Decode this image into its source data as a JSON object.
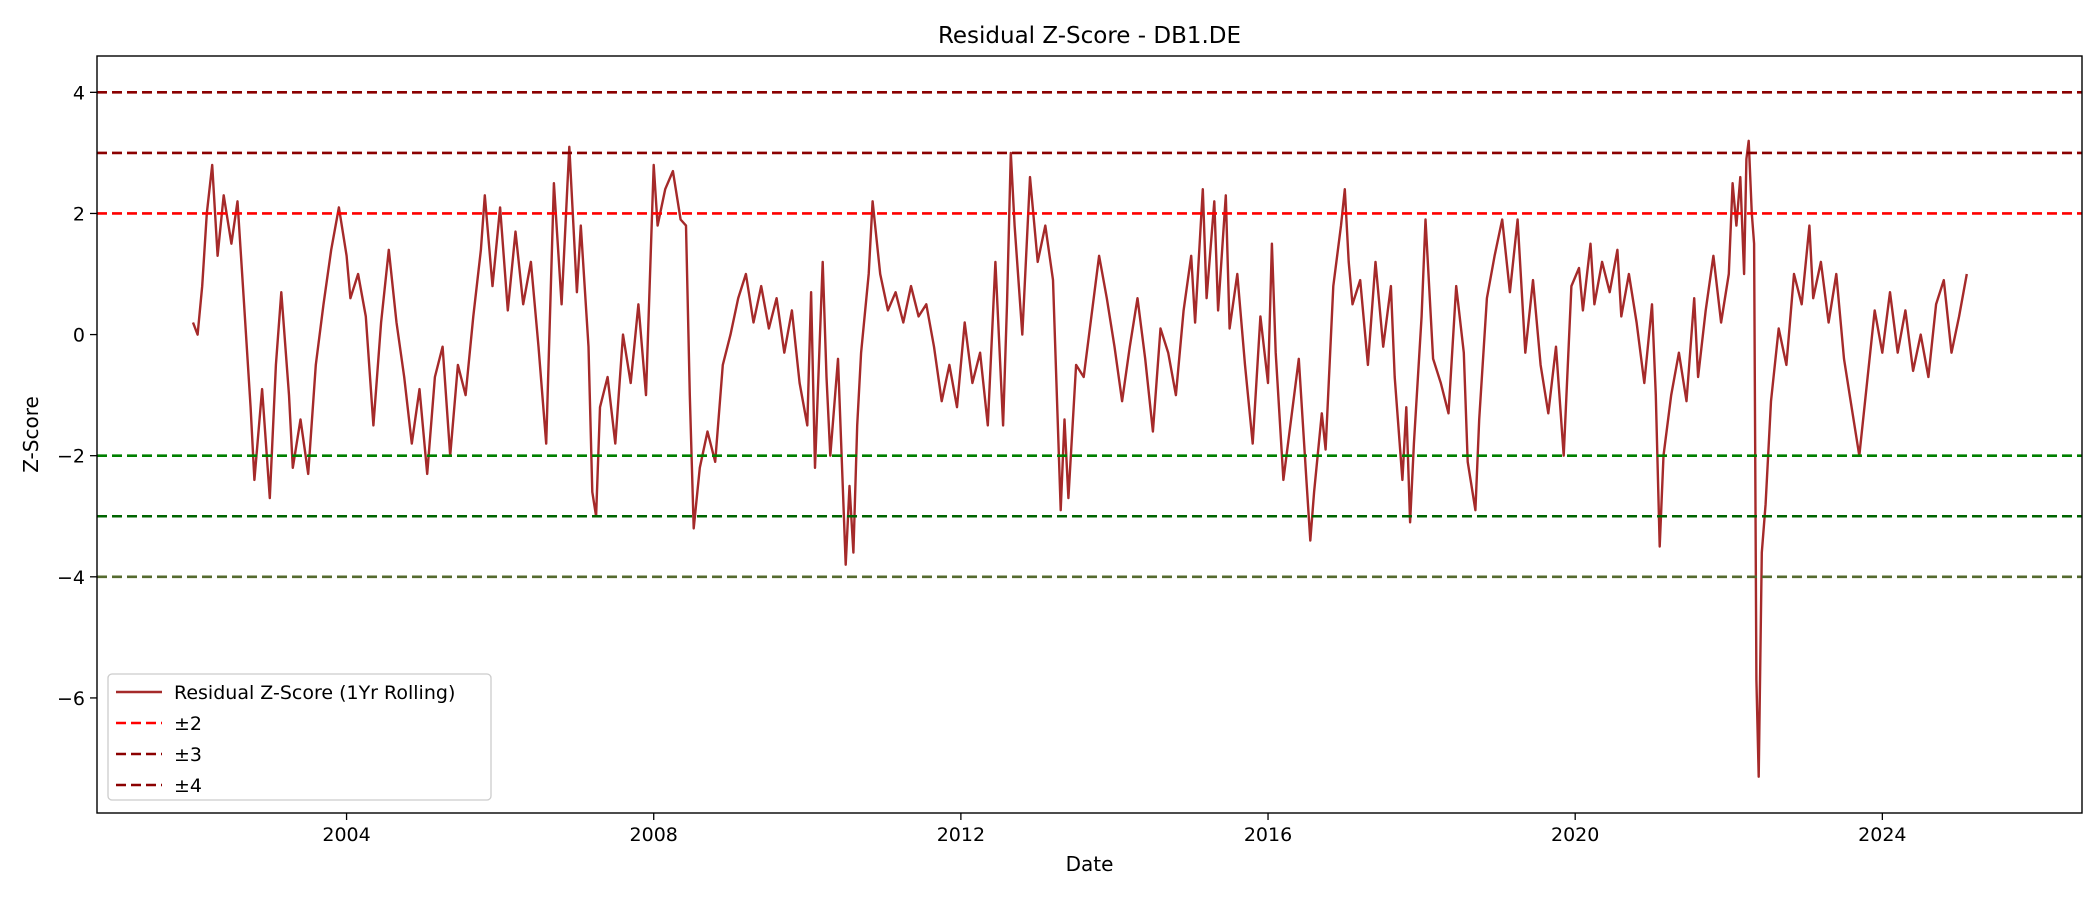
{
  "chart_data": {
    "type": "line",
    "title": "Residual Z-Score - DB1.DE",
    "xlabel": "Date",
    "ylabel": "Z-Score",
    "xlim": [
      2000.75,
      2026.6
    ],
    "ylim": [
      -7.9,
      4.6
    ],
    "xticks": [
      2004,
      2008,
      2012,
      2016,
      2020,
      2024
    ],
    "yticks": [
      4,
      2,
      0,
      -2,
      -4,
      -6
    ],
    "ytick_labels": [
      "4",
      "2",
      "0",
      "−2",
      "−4",
      "−6"
    ],
    "grid": false,
    "legend_position": "lower-left",
    "series": [
      {
        "name": "Residual Z-Score (1Yr Rolling)",
        "color": "#a52a2a",
        "points": [
          [
            2002.0,
            0.2
          ],
          [
            2002.06,
            0.0
          ],
          [
            2002.12,
            0.8
          ],
          [
            2002.18,
            2.0
          ],
          [
            2002.25,
            2.8
          ],
          [
            2002.32,
            1.3
          ],
          [
            2002.4,
            2.3
          ],
          [
            2002.5,
            1.5
          ],
          [
            2002.58,
            2.2
          ],
          [
            2002.66,
            0.6
          ],
          [
            2002.75,
            -1.2
          ],
          [
            2002.8,
            -2.4
          ],
          [
            2002.9,
            -0.9
          ],
          [
            2003.0,
            -2.7
          ],
          [
            2003.08,
            -0.5
          ],
          [
            2003.15,
            0.7
          ],
          [
            2003.25,
            -1.0
          ],
          [
            2003.3,
            -2.2
          ],
          [
            2003.4,
            -1.4
          ],
          [
            2003.5,
            -2.3
          ],
          [
            2003.6,
            -0.5
          ],
          [
            2003.7,
            0.5
          ],
          [
            2003.8,
            1.4
          ],
          [
            2003.9,
            2.1
          ],
          [
            2004.0,
            1.3
          ],
          [
            2004.05,
            0.6
          ],
          [
            2004.15,
            1.0
          ],
          [
            2004.25,
            0.3
          ],
          [
            2004.35,
            -1.5
          ],
          [
            2004.45,
            0.2
          ],
          [
            2004.55,
            1.4
          ],
          [
            2004.65,
            0.2
          ],
          [
            2004.75,
            -0.7
          ],
          [
            2004.85,
            -1.8
          ],
          [
            2004.95,
            -0.9
          ],
          [
            2005.05,
            -2.3
          ],
          [
            2005.15,
            -0.7
          ],
          [
            2005.25,
            -0.2
          ],
          [
            2005.35,
            -2.0
          ],
          [
            2005.45,
            -0.5
          ],
          [
            2005.55,
            -1.0
          ],
          [
            2005.65,
            0.3
          ],
          [
            2005.75,
            1.4
          ],
          [
            2005.8,
            2.3
          ],
          [
            2005.9,
            0.8
          ],
          [
            2006.0,
            2.1
          ],
          [
            2006.1,
            0.4
          ],
          [
            2006.2,
            1.7
          ],
          [
            2006.3,
            0.5
          ],
          [
            2006.4,
            1.2
          ],
          [
            2006.5,
            -0.2
          ],
          [
            2006.6,
            -1.8
          ],
          [
            2006.7,
            2.5
          ],
          [
            2006.8,
            0.5
          ],
          [
            2006.9,
            3.1
          ],
          [
            2007.0,
            0.7
          ],
          [
            2007.05,
            1.8
          ],
          [
            2007.15,
            -0.2
          ],
          [
            2007.2,
            -2.6
          ],
          [
            2007.25,
            -3.0
          ],
          [
            2007.3,
            -1.2
          ],
          [
            2007.4,
            -0.7
          ],
          [
            2007.5,
            -1.8
          ],
          [
            2007.6,
            0.0
          ],
          [
            2007.7,
            -0.8
          ],
          [
            2007.8,
            0.5
          ],
          [
            2007.9,
            -1.0
          ],
          [
            2008.0,
            2.8
          ],
          [
            2008.05,
            1.8
          ],
          [
            2008.15,
            2.4
          ],
          [
            2008.25,
            2.7
          ],
          [
            2008.35,
            1.9
          ],
          [
            2008.42,
            1.8
          ],
          [
            2008.47,
            -1.0
          ],
          [
            2008.52,
            -3.2
          ],
          [
            2008.6,
            -2.2
          ],
          [
            2008.7,
            -1.6
          ],
          [
            2008.8,
            -2.1
          ],
          [
            2008.9,
            -0.5
          ],
          [
            2009.0,
            0.0
          ],
          [
            2009.1,
            0.6
          ],
          [
            2009.2,
            1.0
          ],
          [
            2009.3,
            0.2
          ],
          [
            2009.4,
            0.8
          ],
          [
            2009.5,
            0.1
          ],
          [
            2009.6,
            0.6
          ],
          [
            2009.7,
            -0.3
          ],
          [
            2009.8,
            0.4
          ],
          [
            2009.9,
            -0.8
          ],
          [
            2010.0,
            -1.5
          ],
          [
            2010.05,
            0.7
          ],
          [
            2010.1,
            -2.2
          ],
          [
            2010.2,
            1.2
          ],
          [
            2010.25,
            -0.7
          ],
          [
            2010.3,
            -2.0
          ],
          [
            2010.4,
            -0.4
          ],
          [
            2010.5,
            -3.8
          ],
          [
            2010.55,
            -2.5
          ],
          [
            2010.6,
            -3.6
          ],
          [
            2010.65,
            -1.5
          ],
          [
            2010.7,
            -0.3
          ],
          [
            2010.8,
            1.0
          ],
          [
            2010.85,
            2.2
          ],
          [
            2010.95,
            1.0
          ],
          [
            2011.05,
            0.4
          ],
          [
            2011.15,
            0.7
          ],
          [
            2011.25,
            0.2
          ],
          [
            2011.35,
            0.8
          ],
          [
            2011.45,
            0.3
          ],
          [
            2011.55,
            0.5
          ],
          [
            2011.65,
            -0.2
          ],
          [
            2011.75,
            -1.1
          ],
          [
            2011.85,
            -0.5
          ],
          [
            2011.95,
            -1.2
          ],
          [
            2012.05,
            0.2
          ],
          [
            2012.15,
            -0.8
          ],
          [
            2012.25,
            -0.3
          ],
          [
            2012.35,
            -1.5
          ],
          [
            2012.45,
            1.2
          ],
          [
            2012.55,
            -1.5
          ],
          [
            2012.6,
            0.5
          ],
          [
            2012.65,
            3.0
          ],
          [
            2012.7,
            1.8
          ],
          [
            2012.8,
            0.0
          ],
          [
            2012.9,
            2.6
          ],
          [
            2013.0,
            1.2
          ],
          [
            2013.1,
            1.8
          ],
          [
            2013.2,
            0.9
          ],
          [
            2013.3,
            -2.9
          ],
          [
            2013.35,
            -1.4
          ],
          [
            2013.4,
            -2.7
          ],
          [
            2013.5,
            -0.5
          ],
          [
            2013.6,
            -0.7
          ],
          [
            2013.7,
            0.3
          ],
          [
            2013.8,
            1.3
          ],
          [
            2013.9,
            0.6
          ],
          [
            2014.0,
            -0.2
          ],
          [
            2014.1,
            -1.1
          ],
          [
            2014.2,
            -0.2
          ],
          [
            2014.3,
            0.6
          ],
          [
            2014.4,
            -0.4
          ],
          [
            2014.5,
            -1.6
          ],
          [
            2014.6,
            0.1
          ],
          [
            2014.7,
            -0.3
          ],
          [
            2014.8,
            -1.0
          ],
          [
            2014.9,
            0.4
          ],
          [
            2015.0,
            1.3
          ],
          [
            2015.05,
            0.2
          ],
          [
            2015.15,
            2.4
          ],
          [
            2015.2,
            0.6
          ],
          [
            2015.3,
            2.2
          ],
          [
            2015.35,
            0.4
          ],
          [
            2015.45,
            2.3
          ],
          [
            2015.5,
            0.1
          ],
          [
            2015.6,
            1.0
          ],
          [
            2015.7,
            -0.5
          ],
          [
            2015.8,
            -1.8
          ],
          [
            2015.9,
            0.3
          ],
          [
            2016.0,
            -0.8
          ],
          [
            2016.05,
            1.5
          ],
          [
            2016.1,
            -0.3
          ],
          [
            2016.2,
            -2.4
          ],
          [
            2016.3,
            -1.4
          ],
          [
            2016.4,
            -0.4
          ],
          [
            2016.5,
            -2.4
          ],
          [
            2016.55,
            -3.4
          ],
          [
            2016.6,
            -2.6
          ],
          [
            2016.7,
            -1.3
          ],
          [
            2016.75,
            -1.9
          ],
          [
            2016.85,
            0.8
          ],
          [
            2016.95,
            1.8
          ],
          [
            2017.0,
            2.4
          ],
          [
            2017.05,
            1.2
          ],
          [
            2017.1,
            0.5
          ],
          [
            2017.2,
            0.9
          ],
          [
            2017.3,
            -0.5
          ],
          [
            2017.4,
            1.2
          ],
          [
            2017.5,
            -0.2
          ],
          [
            2017.6,
            0.8
          ],
          [
            2017.65,
            -0.7
          ],
          [
            2017.75,
            -2.4
          ],
          [
            2017.8,
            -1.2
          ],
          [
            2017.85,
            -3.1
          ],
          [
            2017.9,
            -1.8
          ],
          [
            2018.0,
            0.3
          ],
          [
            2018.05,
            1.9
          ],
          [
            2018.15,
            -0.4
          ],
          [
            2018.25,
            -0.8
          ],
          [
            2018.35,
            -1.3
          ],
          [
            2018.45,
            0.8
          ],
          [
            2018.55,
            -0.3
          ],
          [
            2018.6,
            -2.1
          ],
          [
            2018.7,
            -2.9
          ],
          [
            2018.75,
            -1.4
          ],
          [
            2018.85,
            0.6
          ],
          [
            2018.95,
            1.3
          ],
          [
            2019.05,
            1.9
          ],
          [
            2019.15,
            0.7
          ],
          [
            2019.25,
            1.9
          ],
          [
            2019.35,
            -0.3
          ],
          [
            2019.45,
            0.9
          ],
          [
            2019.55,
            -0.5
          ],
          [
            2019.65,
            -1.3
          ],
          [
            2019.75,
            -0.2
          ],
          [
            2019.85,
            -2.0
          ],
          [
            2019.95,
            0.8
          ],
          [
            2020.05,
            1.1
          ],
          [
            2020.1,
            0.4
          ],
          [
            2020.2,
            1.5
          ],
          [
            2020.25,
            0.5
          ],
          [
            2020.35,
            1.2
          ],
          [
            2020.45,
            0.7
          ],
          [
            2020.55,
            1.4
          ],
          [
            2020.6,
            0.3
          ],
          [
            2020.7,
            1.0
          ],
          [
            2020.8,
            0.2
          ],
          [
            2020.9,
            -0.8
          ],
          [
            2021.0,
            0.5
          ],
          [
            2021.05,
            -1.0
          ],
          [
            2021.1,
            -3.5
          ],
          [
            2021.15,
            -2.0
          ],
          [
            2021.25,
            -1.0
          ],
          [
            2021.35,
            -0.3
          ],
          [
            2021.45,
            -1.1
          ],
          [
            2021.55,
            0.6
          ],
          [
            2021.6,
            -0.7
          ],
          [
            2021.7,
            0.4
          ],
          [
            2021.8,
            1.3
          ],
          [
            2021.9,
            0.2
          ],
          [
            2022.0,
            1.0
          ],
          [
            2022.05,
            2.5
          ],
          [
            2022.1,
            1.8
          ],
          [
            2022.15,
            2.6
          ],
          [
            2022.2,
            1.0
          ],
          [
            2022.23,
            2.9
          ],
          [
            2022.26,
            3.2
          ],
          [
            2022.3,
            2.0
          ],
          [
            2022.33,
            1.5
          ],
          [
            2022.36,
            -5.7
          ],
          [
            2022.39,
            -7.3
          ],
          [
            2022.43,
            -3.6
          ],
          [
            2022.48,
            -2.8
          ],
          [
            2022.55,
            -1.1
          ],
          [
            2022.65,
            0.1
          ],
          [
            2022.75,
            -0.5
          ],
          [
            2022.85,
            1.0
          ],
          [
            2022.95,
            0.5
          ],
          [
            2023.05,
            1.8
          ],
          [
            2023.1,
            0.6
          ],
          [
            2023.2,
            1.2
          ],
          [
            2023.3,
            0.2
          ],
          [
            2023.4,
            1.0
          ],
          [
            2023.5,
            -0.4
          ],
          [
            2023.6,
            -1.2
          ],
          [
            2023.7,
            -2.0
          ],
          [
            2023.8,
            -0.8
          ],
          [
            2023.9,
            0.4
          ],
          [
            2024.0,
            -0.3
          ],
          [
            2024.1,
            0.7
          ],
          [
            2024.2,
            -0.3
          ],
          [
            2024.3,
            0.4
          ],
          [
            2024.4,
            -0.6
          ],
          [
            2024.5,
            0.0
          ],
          [
            2024.6,
            -0.7
          ],
          [
            2024.7,
            0.5
          ],
          [
            2024.8,
            0.9
          ],
          [
            2024.9,
            -0.3
          ],
          [
            2025.0,
            0.3
          ],
          [
            2025.1,
            1.0
          ]
        ]
      }
    ],
    "reference_lines": [
      {
        "label": "±2",
        "values": [
          2,
          -2
        ],
        "colors": [
          "#ff0000",
          "#008000"
        ]
      },
      {
        "label": "±3",
        "values": [
          3,
          -3
        ],
        "colors": [
          "#8b0000",
          "#006400"
        ]
      },
      {
        "label": "±4",
        "values": [
          4,
          -4
        ],
        "colors": [
          "#8b0000",
          "#556b2f"
        ]
      }
    ]
  }
}
